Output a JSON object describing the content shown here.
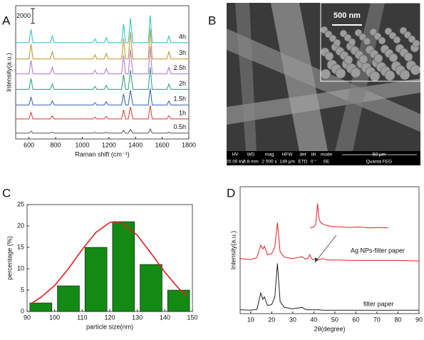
{
  "panel_labels": [
    "A",
    "B",
    "C",
    "D"
  ],
  "image": {
    "scale_label": "500 nm",
    "info_headers": [
      "HV",
      "WD",
      "mag",
      "HFW",
      "det",
      "tilt",
      "mode"
    ],
    "info_values": [
      "20.00 kV",
      "8.8 mm",
      "2 000 x",
      "149 μm",
      "ETD",
      "0 °",
      "SE"
    ],
    "scale": "50 μm",
    "instrument": "Quanta FEG"
  },
  "chart_data": [
    {
      "type": "line",
      "x_label": "Raman shift (cm⁻¹)",
      "y_label": "Intensity(a.u.)",
      "xlim": [
        500,
        1800
      ],
      "xticks": [
        600,
        800,
        1000,
        1200,
        1400,
        1600,
        1800
      ],
      "ylim": [
        -500,
        17500
      ],
      "scale_bar": 2000,
      "x": [
        500,
        600,
        615,
        630,
        760,
        775,
        790,
        1080,
        1095,
        1110,
        1165,
        1180,
        1195,
        1295,
        1310,
        1325,
        1345,
        1362,
        1380,
        1495,
        1510,
        1525,
        1635,
        1650,
        1665,
        1800
      ],
      "series": [
        {
          "name": "0.5h",
          "color": "#555555",
          "values": [
            300,
            300,
            570,
            300,
            300,
            435,
            300,
            300,
            375,
            300,
            300,
            405,
            300,
            300,
            675,
            300,
            300,
            795,
            300,
            300,
            855,
            300,
            300,
            435,
            300,
            300
          ]
        },
        {
          "name": "1h",
          "color": "#e03535",
          "values": [
            2200,
            2200,
            3100,
            2200,
            2200,
            2650,
            2200,
            2200,
            2450,
            2200,
            2200,
            2550,
            2200,
            2200,
            3450,
            2200,
            2200,
            3850,
            2200,
            2200,
            4050,
            2200,
            2200,
            2650,
            2200,
            2200
          ]
        },
        {
          "name": "1.5h",
          "color": "#2a60b0",
          "values": [
            4100,
            4100,
            5180,
            4100,
            4100,
            4640,
            4100,
            4100,
            4400,
            4100,
            4100,
            4520,
            4100,
            4100,
            5600,
            4100,
            4100,
            6080,
            4100,
            4100,
            6320,
            4100,
            4100,
            4640,
            4100,
            4100
          ]
        },
        {
          "name": "2h",
          "color": "#20a070",
          "values": [
            6200,
            6200,
            7640,
            6200,
            6200,
            6920,
            6200,
            6200,
            6600,
            6200,
            6200,
            6760,
            6200,
            6200,
            8200,
            6200,
            6200,
            8840,
            6200,
            6200,
            9160,
            6200,
            6200,
            6920,
            6200,
            6200
          ]
        },
        {
          "name": "2.5h",
          "color": "#b070d0",
          "values": [
            8300,
            8300,
            10100,
            8300,
            8300,
            9200,
            8300,
            8300,
            8800,
            8300,
            8300,
            9000,
            8300,
            8300,
            10800,
            8300,
            8300,
            11600,
            8300,
            8300,
            12000,
            8300,
            8300,
            9200,
            8300,
            8300
          ]
        },
        {
          "name": "3h",
          "color": "#c09020",
          "values": [
            10300,
            10300,
            12280,
            10300,
            10300,
            11290,
            10300,
            10300,
            10850,
            10300,
            10300,
            11070,
            10300,
            10300,
            13050,
            10300,
            10300,
            13930,
            10300,
            10300,
            14370,
            10300,
            10300,
            11290,
            10300,
            10300
          ]
        },
        {
          "name": "4h",
          "color": "#20c0c0",
          "values": [
            12500,
            12500,
            14300,
            12500,
            12500,
            13400,
            12500,
            12500,
            13000,
            12500,
            12500,
            13200,
            12500,
            12500,
            15000,
            12500,
            12500,
            15800,
            12500,
            12500,
            16200,
            12500,
            12500,
            13400,
            12500,
            12500
          ]
        }
      ]
    },
    {
      "type": "bar",
      "x_label": "particle size(nm)",
      "y_label": "percentage (%)",
      "xlim": [
        90,
        150
      ],
      "xticks": [
        90,
        100,
        110,
        120,
        130,
        140,
        150
      ],
      "ylim": [
        0,
        25
      ],
      "yticks": [
        0,
        5,
        10,
        15,
        20,
        25
      ],
      "x": [
        95,
        105,
        115,
        125,
        135,
        145
      ],
      "values": [
        2,
        6,
        15,
        21,
        11,
        5
      ],
      "color": "#138a13",
      "fit": {
        "color": "#e02020",
        "x": [
          92,
          95,
          100,
          105,
          110,
          115,
          120,
          122,
          125,
          130,
          135,
          140,
          145,
          148
        ],
        "values": [
          2.1,
          3.3,
          6.1,
          10.0,
          14.5,
          18.5,
          20.8,
          21,
          20.5,
          17.8,
          13.6,
          9.2,
          5.4,
          3.7
        ]
      }
    },
    {
      "type": "line",
      "x_label": "2θ(degree)",
      "y_label": "Intensity(a.u.)",
      "xlim": [
        5,
        90
      ],
      "xticks": [
        10,
        20,
        30,
        40,
        50,
        60,
        70,
        80,
        90
      ],
      "ylim": [
        -5,
        260
      ],
      "x": [
        5,
        10,
        13,
        14.8,
        15.8,
        16.5,
        18,
        20,
        21.5,
        22.7,
        24,
        26,
        30,
        34.5,
        36,
        37.3,
        38.1,
        39,
        42,
        44.3,
        46,
        50,
        60,
        70,
        80,
        90
      ],
      "series": [
        {
          "name": "Ag NPs-filter paper",
          "color": "#e02020",
          "values": [
            110,
            108,
            112,
            138,
            130,
            136,
            118,
            120,
            134,
            185,
            124,
            113,
            110,
            114,
            109,
            111,
            118,
            109,
            107,
            110,
            107,
            107,
            106,
            106,
            106,
            105
          ]
        },
        {
          "name": "filter paper",
          "color": "#222222",
          "values": [
            3,
            2,
            4,
            38,
            25,
            30,
            12,
            14,
            30,
            100,
            20,
            8,
            5,
            8,
            4,
            3,
            3,
            3,
            3,
            2,
            2,
            2,
            2,
            2,
            2,
            2
          ]
        }
      ],
      "inset": {
        "color": "#e02020",
        "xlim": [
          34,
          75
        ],
        "ylim": [
          0,
          3.2
        ],
        "x": [
          34,
          36,
          37,
          38,
          38.5,
          39,
          40,
          42,
          44,
          46,
          50,
          55,
          60,
          65,
          70,
          75
        ],
        "values": [
          0.4,
          0.5,
          0.8,
          3.0,
          1.8,
          1.2,
          0.9,
          0.7,
          0.6,
          0.55,
          0.5,
          0.45,
          0.5,
          0.4,
          0.45,
          0.4
        ]
      }
    }
  ]
}
